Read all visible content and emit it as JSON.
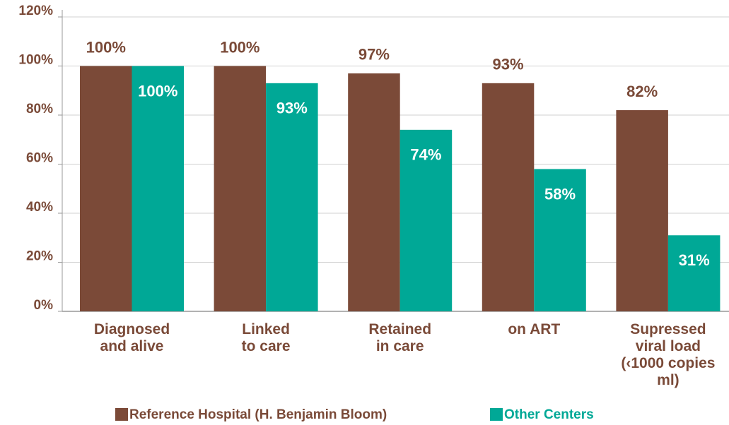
{
  "chart_data": {
    "type": "bar",
    "categories": [
      "Diagnosed\nand alive",
      "Linked\nto care",
      "Retained\nin care",
      "on ART",
      "Supressed\nviral load\n(‹1000 copies\nml)"
    ],
    "series": [
      {
        "name": "Reference Hospital (H. Benjamin Bloom)",
        "color": "#7b4a38",
        "values": [
          100,
          100,
          97,
          93,
          82
        ],
        "value_labels": [
          "100%",
          "100%",
          "97%",
          "93%",
          "82%"
        ]
      },
      {
        "name": "Other Centers",
        "color": "#00a896",
        "values": [
          100,
          93,
          74,
          58,
          31
        ],
        "value_labels": [
          "100%",
          "93%",
          "74%",
          "58%",
          "31%"
        ]
      }
    ],
    "ylim": [
      0,
      120
    ],
    "yticks": [
      {
        "value": 0,
        "label": "0%"
      },
      {
        "value": 20,
        "label": "20%"
      },
      {
        "value": 40,
        "label": "40%"
      },
      {
        "value": 60,
        "label": "60%"
      },
      {
        "value": 80,
        "label": "80%"
      },
      {
        "value": 100,
        "label": "100%"
      },
      {
        "value": 120,
        "label": "120%"
      }
    ],
    "grid": true
  }
}
